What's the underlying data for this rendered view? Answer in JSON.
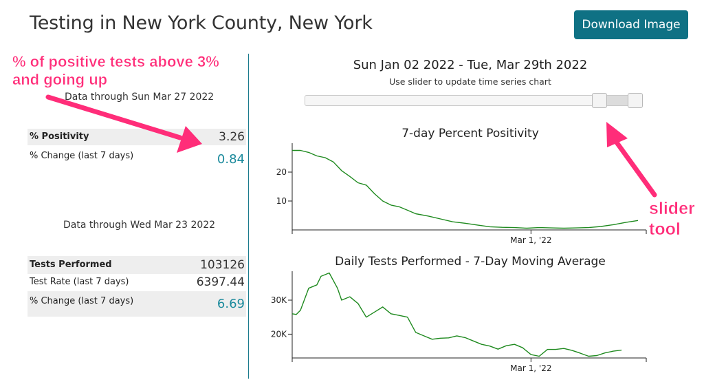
{
  "header": {
    "title": "Testing in New York County, New York",
    "download_label": "Download Image",
    "download_color": "#0f7184"
  },
  "positivity_panel": {
    "caption": "Data through Sun Mar 27 2022",
    "rows": [
      {
        "label": "% Positivity",
        "value": "3.26"
      },
      {
        "label": "% Change (last 7 days)",
        "value": "0.84"
      }
    ]
  },
  "tests_panel": {
    "caption": "Data through Wed Mar 23 2022",
    "rows": [
      {
        "label": "Tests Performed",
        "value": "103126"
      },
      {
        "label": "Test Rate (last 7 days)",
        "value": "6397.44"
      },
      {
        "label": "% Change (last 7 days)",
        "value": "6.69"
      }
    ]
  },
  "time_range": {
    "title": "Sun Jan 02 2022 - Tue, Mar 29th 2022",
    "hint": "Use slider to update time series chart",
    "selected_start_fraction": 0.873,
    "selected_end_fraction": 0.98
  },
  "chart_data": [
    {
      "type": "line",
      "title": "7-day Percent Positivity",
      "xlabel": "",
      "ylabel": "",
      "x_range": [
        "2022-01-02",
        "2022-03-29"
      ],
      "x_ticks": [
        {
          "date": "2022-03-01",
          "label": "Mar 1, '22"
        }
      ],
      "y_ticks": [
        {
          "value": 10,
          "label": "10"
        },
        {
          "value": 20,
          "label": "20"
        }
      ],
      "ylim": [
        0,
        30
      ],
      "color": "#1f8a1f",
      "series": [
        {
          "x": [
            "2022-01-02",
            "2022-01-04",
            "2022-01-06",
            "2022-01-08",
            "2022-01-10",
            "2022-01-12",
            "2022-01-14",
            "2022-01-16",
            "2022-01-18",
            "2022-01-20",
            "2022-01-22",
            "2022-01-24",
            "2022-01-26",
            "2022-01-28",
            "2022-01-30",
            "2022-02-01",
            "2022-02-04",
            "2022-02-07",
            "2022-02-10",
            "2022-02-13",
            "2022-02-16",
            "2022-02-19",
            "2022-02-22",
            "2022-02-25",
            "2022-02-28",
            "2022-03-03",
            "2022-03-06",
            "2022-03-09",
            "2022-03-12",
            "2022-03-15",
            "2022-03-18",
            "2022-03-21",
            "2022-03-24",
            "2022-03-27"
          ],
          "values": [
            27.5,
            27.5,
            26.8,
            25.6,
            25.0,
            23.5,
            20.5,
            18.5,
            16.3,
            15.5,
            12.5,
            10.0,
            8.6,
            8.0,
            6.8,
            5.6,
            4.8,
            3.8,
            2.8,
            2.3,
            1.7,
            1.1,
            0.9,
            0.8,
            0.6,
            0.8,
            0.7,
            0.6,
            0.7,
            0.8,
            1.2,
            1.8,
            2.6,
            3.26
          ]
        }
      ]
    },
    {
      "type": "line",
      "title": "Daily Tests Performed - 7-Day Moving Average",
      "xlabel": "",
      "ylabel": "",
      "x_range": [
        "2022-01-02",
        "2022-03-29"
      ],
      "x_ticks": [
        {
          "date": "2022-03-01",
          "label": "Mar 1, '22"
        }
      ],
      "y_ticks": [
        {
          "value": 20000,
          "label": "20K"
        },
        {
          "value": 30000,
          "label": "30K"
        }
      ],
      "ylim": [
        13000,
        38500
      ],
      "color": "#1f8a1f",
      "series": [
        {
          "x": [
            "2022-01-02",
            "2022-01-03",
            "2022-01-04",
            "2022-01-06",
            "2022-01-08",
            "2022-01-09",
            "2022-01-11",
            "2022-01-13",
            "2022-01-14",
            "2022-01-16",
            "2022-01-18",
            "2022-01-20",
            "2022-01-22",
            "2022-01-24",
            "2022-01-26",
            "2022-01-28",
            "2022-01-30",
            "2022-02-01",
            "2022-02-03",
            "2022-02-05",
            "2022-02-07",
            "2022-02-09",
            "2022-02-11",
            "2022-02-13",
            "2022-02-15",
            "2022-02-17",
            "2022-02-19",
            "2022-02-21",
            "2022-02-23",
            "2022-02-25",
            "2022-02-27",
            "2022-03-01",
            "2022-03-03",
            "2022-03-05",
            "2022-03-07",
            "2022-03-09",
            "2022-03-11",
            "2022-03-13",
            "2022-03-15",
            "2022-03-17",
            "2022-03-19",
            "2022-03-21",
            "2022-03-23"
          ],
          "values": [
            26000,
            25800,
            27000,
            33500,
            34500,
            37000,
            38000,
            33500,
            30000,
            31000,
            29000,
            25000,
            26500,
            28000,
            26000,
            25500,
            25000,
            20500,
            19500,
            18500,
            18800,
            18900,
            19500,
            19000,
            18000,
            17000,
            16500,
            15600,
            16600,
            17000,
            16000,
            14000,
            13500,
            15500,
            15500,
            15800,
            15200,
            14400,
            13500,
            13700,
            14500,
            15000,
            15300
          ]
        }
      ]
    }
  ],
  "annotations": {
    "positive_line1": "% of positive tests above 3%",
    "positive_line2": "and going up",
    "slider_line1": "slider",
    "slider_line2": "tool",
    "color": "#ff2d79"
  }
}
